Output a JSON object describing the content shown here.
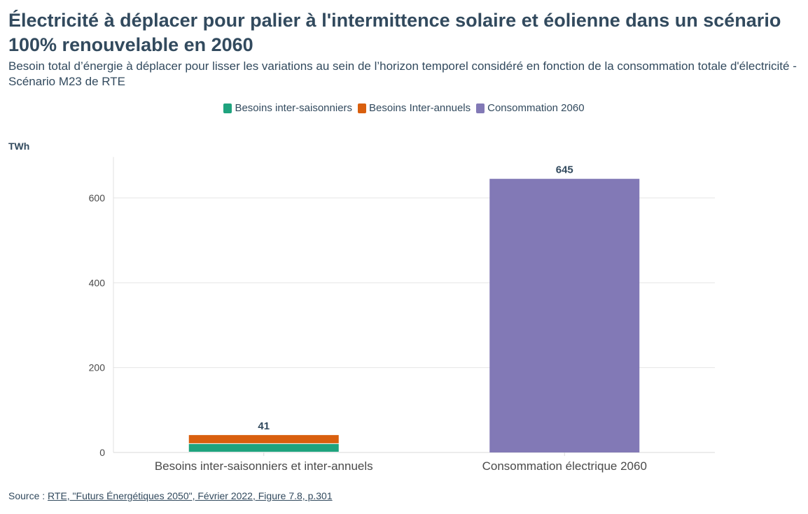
{
  "title": "Électricité à déplacer pour palier à l'intermittence solaire et éolienne dans un scénario 100% renouvelable en 2060",
  "subtitle": "Besoin total d’énergie à déplacer pour lisser les variations au sein de l’horizon temporel considéré en fonction de la consommation totale d'électricité - Scénario M23 de RTE",
  "legend": [
    {
      "label": "Besoins inter-saisonniers",
      "color": "#1fa37e"
    },
    {
      "label": "Besoins Inter-annuels",
      "color": "#d95f0e"
    },
    {
      "label": "Consommation 2060",
      "color": "#8279b6"
    }
  ],
  "source": {
    "prefix": "Source : ",
    "link_text": "RTE, \"Futurs Énergétiques 2050\", Février 2022, Figure 7.8, p.301"
  },
  "chart_data": {
    "type": "bar",
    "stacked": true,
    "ylabel": "TWh",
    "ylim": [
      0,
      680
    ],
    "yticks": [
      0,
      200,
      400,
      600
    ],
    "grid": true,
    "legend_position": "top-center",
    "categories": [
      "Besoins inter-saisonniers et inter-annuels",
      "Consommation électrique 2060"
    ],
    "series": [
      {
        "name": "Besoins inter-saisonniers",
        "color": "#1fa37e",
        "values": [
          20,
          null
        ]
      },
      {
        "name": "Besoins Inter-annuels",
        "color": "#d95f0e",
        "values": [
          21,
          null
        ]
      },
      {
        "name": "Consommation 2060",
        "color": "#8279b6",
        "values": [
          null,
          645
        ]
      }
    ],
    "totals": [
      "41",
      "645"
    ]
  }
}
